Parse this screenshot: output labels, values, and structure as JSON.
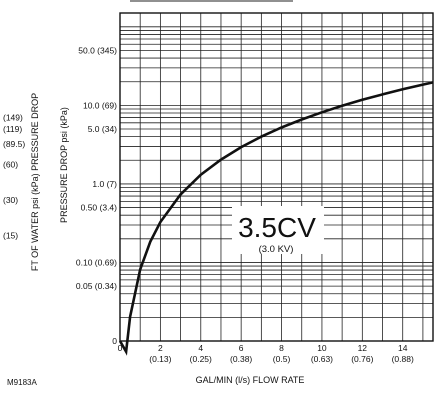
{
  "chart_data": {
    "type": "line",
    "scale": "y-log",
    "xlabel": "GAL/MIN (l/s) FLOW RATE",
    "ylabel": "PRESSURE DROP psi (kPa)",
    "ylabel_left": "FT OF WATER psi (kPa) PRESSURE DROP",
    "xlim": [
      0,
      15.5
    ],
    "ylim": [
      0.01,
      150
    ],
    "x_ticks": [
      {
        "value": 0,
        "label": "0",
        "sub": ""
      },
      {
        "value": 2,
        "label": "2",
        "sub": "(0.13)"
      },
      {
        "value": 4,
        "label": "4",
        "sub": "(0.25)"
      },
      {
        "value": 6,
        "label": "6",
        "sub": "(0.38)"
      },
      {
        "value": 8,
        "label": "8",
        "sub": "(0.5)"
      },
      {
        "value": 10,
        "label": "10",
        "sub": "(0.63)"
      },
      {
        "value": 12,
        "label": "12",
        "sub": "(0.76)"
      },
      {
        "value": 14,
        "label": "14",
        "sub": "(0.88)"
      }
    ],
    "y_ticks": [
      {
        "value": 50,
        "label": "50.0 (345)"
      },
      {
        "value": 10,
        "label": "10.0 (69)"
      },
      {
        "value": 5,
        "label": "5.0 (34)"
      },
      {
        "value": 1,
        "label": "1.0 (7)"
      },
      {
        "value": 0.5,
        "label": "0.50 (3.4)"
      },
      {
        "value": 0.1,
        "label": "0.10 (0.69)"
      },
      {
        "value": 0.05,
        "label": "0.05 (0.34)"
      },
      {
        "value": 0.01,
        "label": "0"
      }
    ],
    "left_ticks": [
      {
        "value": 149,
        "label": "(149)"
      },
      {
        "value": 119,
        "label": "(119)"
      },
      {
        "value": 89.5,
        "label": "(89.5)"
      },
      {
        "value": 60,
        "label": "(60)"
      },
      {
        "value": 30,
        "label": "(30)"
      },
      {
        "value": 15,
        "label": "(15)"
      }
    ],
    "series": [
      {
        "cv": 3.5,
        "x": [
          0.3,
          0.5,
          1,
          1.5,
          2,
          3,
          4,
          5,
          6,
          7,
          8,
          9,
          10,
          11,
          12,
          13,
          14,
          15,
          15.5
        ],
        "y": [
          0.0073,
          0.0204,
          0.0816,
          0.184,
          0.327,
          0.735,
          1.31,
          2.04,
          2.94,
          4.0,
          5.22,
          6.61,
          8.16,
          9.88,
          11.76,
          13.8,
          16.0,
          18.4,
          19.6
        ]
      }
    ],
    "annotation": {
      "main": "3.5CV",
      "sub": "(3.0 KV)"
    }
  },
  "figure_code": "M9183A"
}
